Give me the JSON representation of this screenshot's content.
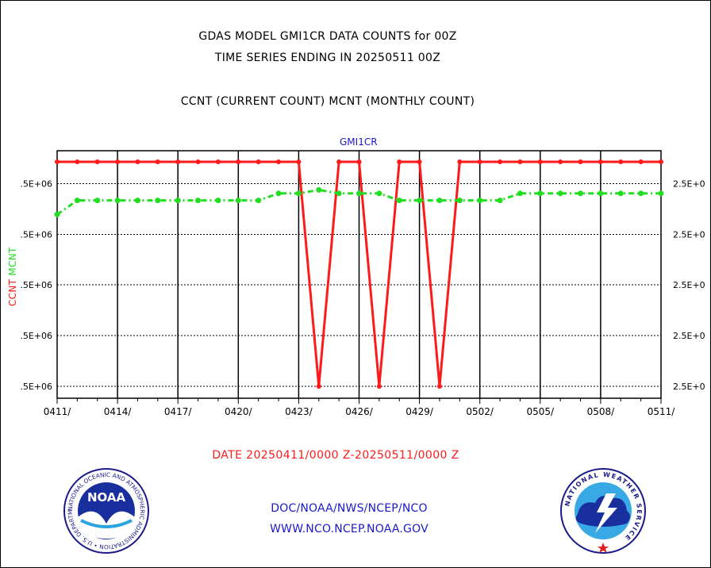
{
  "header": {
    "title": "GDAS MODEL GMI1CR DATA COUNTS for 00Z",
    "subtitle": "TIME SERIES ENDING IN 20250511 00Z",
    "legend_text": "CCNT (CURRENT COUNT) MCNT (MONTHLY COUNT)"
  },
  "footer": {
    "date_range": "DATE 20250411/0000 Z-20250511/0000 Z",
    "doc_text": "DOC/NOAA/NWS/NCEP/NCO",
    "url_text": "WWW.NCO.NCEP.NOAA.GOV"
  },
  "logos": {
    "noaa_label": "NOAA",
    "noaa_ring_text": "NATIONAL OCEANIC AND ATMOSPHERIC ADMINISTRATION • U.S. DEPARTMENT OF COMMERCE •",
    "nws_ring_text": "NATIONAL WEATHER SERVICE"
  },
  "colors": {
    "ccnt": "#ff1a1a",
    "mcnt": "#22dd22",
    "panel_label": "#1a1acc",
    "date_range": "#ff1a1a"
  },
  "chart_data": {
    "type": "line",
    "title": "GMI1CR",
    "x_tick_labels": [
      "0411/",
      "0414/",
      "0417/",
      "0420/",
      "0423/",
      "0426/",
      "0429/",
      "0502/",
      "0505/",
      "0508/",
      "0511/"
    ],
    "x_dates": [
      "0411",
      "0412",
      "0413",
      "0414",
      "0415",
      "0416",
      "0417",
      "0418",
      "0419",
      "0420",
      "0421",
      "0422",
      "0423",
      "0424",
      "0425",
      "0426",
      "0427",
      "0428",
      "0429",
      "0430",
      "0501",
      "0502",
      "0503",
      "0504",
      "0505",
      "0506",
      "0507",
      "0508",
      "0509",
      "0510",
      "0511"
    ],
    "left_axis_label_parts": [
      "CCNT",
      "MCNT"
    ],
    "left_tick_labels": [
      ".5E+06",
      ".5E+06",
      ".5E+06",
      ".5E+06",
      ".5E+06"
    ],
    "right_tick_labels": [
      "2.5E+0",
      "2.5E+0",
      "2.5E+0",
      "2.5E+0",
      "2.5E+0"
    ],
    "grid": true,
    "series": [
      {
        "name": "CCNT",
        "axis": "left",
        "values": [
          6.4,
          6.4,
          6.4,
          6.4,
          6.4,
          6.4,
          6.4,
          6.4,
          6.4,
          6.4,
          6.4,
          6.4,
          6.4,
          0.0,
          6.4,
          6.4,
          0.0,
          6.4,
          6.4,
          0.0,
          6.4,
          6.4,
          6.4,
          6.4,
          6.4,
          6.4,
          6.4,
          6.4,
          6.4,
          6.4,
          6.4
        ]
      },
      {
        "name": "MCNT",
        "axis": "right",
        "values": [
          4.9,
          5.3,
          5.3,
          5.3,
          5.3,
          5.3,
          5.3,
          5.3,
          5.3,
          5.3,
          5.3,
          5.5,
          5.5,
          5.6,
          5.5,
          5.5,
          5.5,
          5.3,
          5.3,
          5.3,
          5.3,
          5.3,
          5.3,
          5.5,
          5.5,
          5.5,
          5.5,
          5.5,
          5.5,
          5.5,
          5.5
        ]
      }
    ]
  }
}
